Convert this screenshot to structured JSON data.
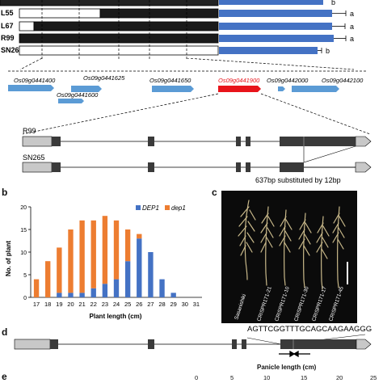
{
  "top_rows": [
    {
      "label": "L55",
      "bar_value": "a",
      "bar_fill": 0.83
    },
    {
      "label": "L67",
      "bar_value": "a",
      "bar_fill": 0.83
    },
    {
      "label": "R99",
      "bar_value": "a",
      "bar_fill": 0.84
    },
    {
      "label": "SN265",
      "bar_value": "b",
      "bar_fill": 0.34
    }
  ],
  "top_partial_letter": "b",
  "genes": [
    {
      "name": "Os09g0441400"
    },
    {
      "name": "Os09g0441600"
    },
    {
      "name": "Os09g0441625"
    },
    {
      "name": "Os09g0441650"
    },
    {
      "name": "Os09g0441900",
      "highlight": true
    },
    {
      "name": "Os09g0442000"
    },
    {
      "name": "Os09g0442100"
    }
  ],
  "gene_structure": {
    "r99_label": "R99",
    "sn265_label": "SN265",
    "substitution_note": "637bp substituted by 12bp"
  },
  "panel_b": {
    "letter": "b",
    "chart_data": {
      "type": "bar",
      "stacked": true,
      "ylabel": "No. of plant",
      "xlabel": "Plant length (cm)",
      "ylim": [
        0,
        20
      ],
      "yticks": [
        "0",
        "5",
        "10",
        "15",
        "20"
      ],
      "categories": [
        "17",
        "18",
        "19",
        "20",
        "21",
        "22",
        "23",
        "24",
        "25",
        "26",
        "27",
        "28",
        "29",
        "30",
        "31"
      ],
      "series": [
        {
          "name": "DEP1",
          "color": "#4472c4",
          "values": [
            0,
            0,
            1,
            1,
            1,
            2,
            3,
            4,
            8,
            13,
            10,
            4,
            1,
            0,
            0
          ]
        },
        {
          "name": "dep1",
          "color": "#ed7d31",
          "values": [
            4,
            8,
            10,
            14,
            16,
            15,
            15,
            13,
            7,
            1,
            0,
            0,
            0,
            0,
            0
          ]
        }
      ],
      "legend_position": "top-right"
    }
  },
  "panel_c": {
    "letter": "c",
    "sample_labels": [
      "Sasanishiki",
      "CRISPR171-21",
      "CRISPR171-10",
      "CRISPR171-30",
      "CRISPR171-17",
      "CRISPR171-45"
    ]
  },
  "panel_d": {
    "letter": "d",
    "sequence": "AGTTCGGTTTGCAGCAAGAAGGG"
  },
  "panel_e": {
    "letter": "e",
    "title": "Panicle length (cm)",
    "ticks": [
      "0",
      "5",
      "10",
      "15",
      "20",
      "25"
    ]
  },
  "colors": {
    "bar_blue": "#4472c4",
    "gene_blue": "#5b9bd5",
    "gene_red": "#e8141b",
    "dep1_orange": "#ed7d31",
    "exon_dark": "#3a3a3a",
    "utr_grey": "#c8c8c8"
  }
}
